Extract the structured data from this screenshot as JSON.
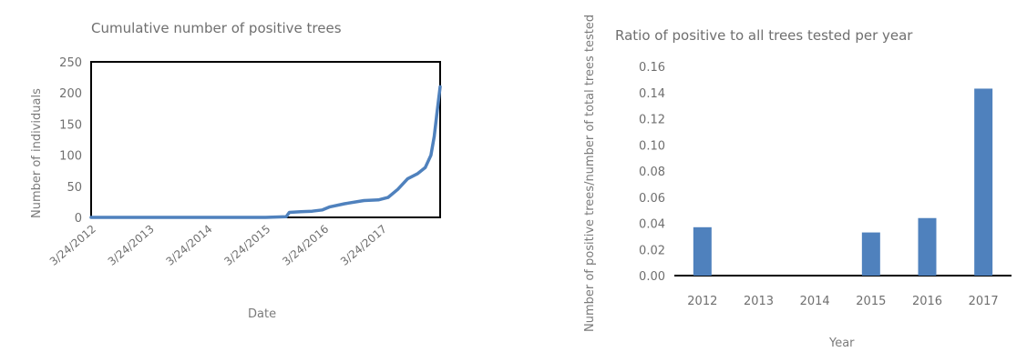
{
  "chart_data": [
    {
      "type": "line",
      "title": "Cumulative number of positive trees",
      "xlabel": "Date",
      "ylabel": "Number of individuals",
      "ylim": [
        0,
        250
      ],
      "yticks": [
        "0",
        "50",
        "100",
        "150",
        "200",
        "250"
      ],
      "xticks": [
        "3/24/2012",
        "3/24/2013",
        "3/24/2014",
        "3/24/2015",
        "3/24/2016",
        "3/24/2017"
      ],
      "series": [
        {
          "color": "#4f81bd",
          "points": [
            [
              "2012-03-24",
              0
            ],
            [
              "2013-03-24",
              0
            ],
            [
              "2014-03-24",
              0
            ],
            [
              "2015-03-24",
              0
            ],
            [
              "2015-08-01",
              1
            ],
            [
              "2015-08-20",
              8
            ],
            [
              "2015-11-01",
              9
            ],
            [
              "2016-01-10",
              10
            ],
            [
              "2016-03-15",
              12
            ],
            [
              "2016-05-01",
              17
            ],
            [
              "2016-08-01",
              22
            ],
            [
              "2016-12-01",
              27
            ],
            [
              "2017-03-01",
              28
            ],
            [
              "2017-05-01",
              32
            ],
            [
              "2017-07-01",
              45
            ],
            [
              "2017-09-01",
              62
            ],
            [
              "2017-11-01",
              70
            ],
            [
              "2017-12-20",
              80
            ],
            [
              "2018-01-25",
              100
            ],
            [
              "2018-02-15",
              130
            ],
            [
              "2018-03-05",
              170
            ],
            [
              "2018-03-24",
              210
            ]
          ]
        }
      ],
      "xlim": [
        "2012-03-24",
        "2018-03-24"
      ],
      "grid": false
    },
    {
      "type": "bar",
      "title": "Ratio of positive to all trees tested per year",
      "xlabel": "Year",
      "ylabel": "Number of positive trees/number of total trees tested",
      "categories": [
        "2012",
        "2013",
        "2014",
        "2015",
        "2016",
        "2017"
      ],
      "values": [
        0.037,
        0,
        0,
        0.033,
        0.044,
        0.143
      ],
      "ylim": [
        0,
        0.16
      ],
      "yticks": [
        "0.00",
        "0.02",
        "0.04",
        "0.06",
        "0.08",
        "0.10",
        "0.12",
        "0.14",
        "0.16"
      ],
      "color": "#4f81bd",
      "grid": false
    }
  ]
}
